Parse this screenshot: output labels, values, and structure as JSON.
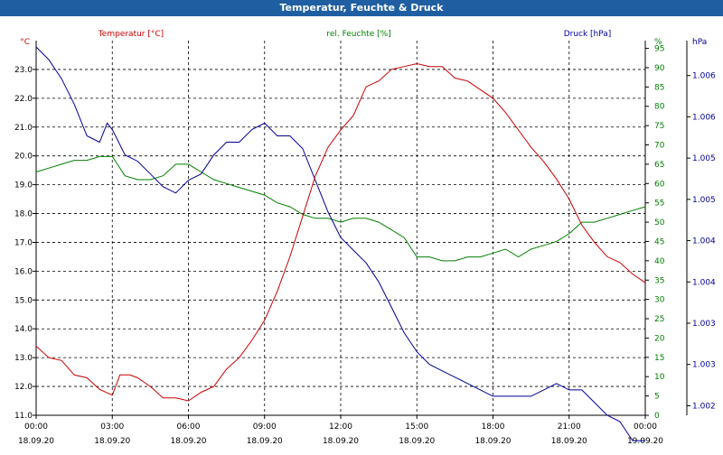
{
  "window": {
    "title": "Temperatur, Feuchte & Druck"
  },
  "chart_data": {
    "type": "line",
    "title": "Temperatur, Feuchte & Druck",
    "x_ticks": [
      {
        "time": "00:00",
        "date": "18.09.20"
      },
      {
        "time": "03:00",
        "date": "18.09.20"
      },
      {
        "time": "06:00",
        "date": "18.09.20"
      },
      {
        "time": "09:00",
        "date": "18.09.20"
      },
      {
        "time": "12:00",
        "date": "18.09.20"
      },
      {
        "time": "15:00",
        "date": "18.09.20"
      },
      {
        "time": "18:00",
        "date": "18.09.20"
      },
      {
        "time": "21:00",
        "date": "18.09.20"
      },
      {
        "time": "00:00",
        "date": "19.09.20"
      }
    ],
    "xlim_hours": [
      0,
      24
    ],
    "grid": true,
    "series": [
      {
        "name": "Temperatur [°C]",
        "axis": "left",
        "unit": "°C",
        "color": "#cc0000",
        "ylim": [
          11.0,
          24.0
        ],
        "ticks": [
          "11.0",
          "12.0",
          "13.0",
          "14.0",
          "15.0",
          "16.0",
          "17.0",
          "18.0",
          "19.0",
          "20.0",
          "21.0",
          "22.0",
          "23.0"
        ],
        "x": [
          0,
          0.5,
          1,
          1.5,
          2,
          2.5,
          3,
          3.3,
          3.7,
          4,
          4.5,
          5,
          5.5,
          6,
          6.5,
          7,
          7.5,
          8,
          8.5,
          9,
          9.5,
          10,
          10.5,
          11,
          11.5,
          12,
          12.5,
          13,
          13.5,
          14,
          14.5,
          15,
          15.5,
          16,
          16.5,
          17,
          17.5,
          18,
          18.5,
          19,
          19.5,
          20,
          20.5,
          21,
          21.5,
          22,
          22.5,
          23,
          23.5,
          24
        ],
        "values": [
          13.4,
          13.0,
          12.9,
          12.4,
          12.3,
          11.9,
          11.7,
          12.4,
          12.4,
          12.3,
          12.0,
          11.6,
          11.6,
          11.5,
          11.8,
          12.0,
          12.6,
          13.0,
          13.6,
          14.3,
          15.3,
          16.5,
          17.9,
          19.3,
          20.3,
          20.9,
          21.4,
          22.4,
          22.6,
          23.0,
          23.1,
          23.2,
          23.1,
          23.1,
          22.7,
          22.6,
          22.3,
          22.0,
          21.5,
          20.9,
          20.3,
          19.8,
          19.2,
          18.5,
          17.6,
          17.0,
          16.5,
          16.3,
          15.9,
          15.6
        ]
      },
      {
        "name": "rel. Feuchte [%]",
        "axis": "right-inner",
        "unit": "%",
        "color": "#008000",
        "ylim": [
          0,
          97
        ],
        "ticks": [
          "0",
          "5",
          "10",
          "15",
          "20",
          "25",
          "30",
          "35",
          "40",
          "45",
          "50",
          "55",
          "60",
          "65",
          "70",
          "75",
          "80",
          "85",
          "90",
          "95"
        ],
        "x": [
          0,
          0.5,
          1,
          1.5,
          2,
          2.5,
          3,
          3.5,
          4,
          4.5,
          5,
          5.5,
          6,
          6.5,
          7,
          7.5,
          8,
          8.5,
          9,
          9.5,
          10,
          10.5,
          11,
          11.5,
          12,
          12.5,
          13,
          13.5,
          14,
          14.5,
          15,
          15.5,
          16,
          16.5,
          17,
          17.5,
          18,
          18.5,
          19,
          19.5,
          20,
          20.5,
          21,
          21.5,
          22,
          22.5,
          23,
          23.5,
          24
        ],
        "values": [
          63,
          64,
          65,
          66,
          66,
          67,
          67,
          62,
          61,
          61,
          62,
          65,
          65,
          63,
          61,
          60,
          59,
          58,
          57,
          55,
          54,
          52,
          51,
          51,
          50,
          51,
          51,
          50,
          48,
          46,
          41,
          41,
          40,
          40,
          41,
          41,
          42,
          43,
          41,
          43,
          44,
          45,
          47,
          50,
          50,
          51,
          52,
          53,
          54
        ]
      },
      {
        "name": "Druck [hPa]",
        "axis": "right",
        "unit": "hPa",
        "color": "#000099",
        "ylim": [
          1001.7,
          1007.6
        ],
        "ticks": [
          "1.002",
          "1.003",
          "1.003",
          "1.004",
          "1.004",
          "1.005",
          "1.005",
          "1.006",
          "1.006",
          "1.007"
        ],
        "x": [
          0,
          0.5,
          1,
          1.5,
          2,
          2.5,
          2.8,
          3,
          3.5,
          4,
          4.5,
          5,
          5.5,
          6,
          6.5,
          7,
          7.5,
          8,
          8.5,
          9,
          9.5,
          10,
          10.5,
          11,
          11.5,
          12,
          12.5,
          13,
          13.5,
          14,
          14.5,
          15,
          15.5,
          16,
          16.5,
          17,
          17.5,
          18,
          18.5,
          19,
          19.5,
          20,
          20.5,
          21,
          21.5,
          22,
          22.5,
          23,
          23.5,
          24
        ],
        "values": [
          1007.5,
          1007.3,
          1007.0,
          1006.6,
          1006.1,
          1006.0,
          1006.3,
          1006.2,
          1005.8,
          1005.7,
          1005.5,
          1005.3,
          1005.2,
          1005.4,
          1005.5,
          1005.8,
          1006.0,
          1006.0,
          1006.2,
          1006.3,
          1006.1,
          1006.1,
          1005.9,
          1005.4,
          1004.9,
          1004.5,
          1004.3,
          1004.1,
          1003.8,
          1003.4,
          1003.0,
          1002.7,
          1002.5,
          1002.4,
          1002.3,
          1002.2,
          1002.1,
          1002.0,
          1002.0,
          1002.0,
          1002.0,
          1002.1,
          1002.2,
          1002.1,
          1002.1,
          1001.9,
          1001.7,
          1001.6,
          1001.3,
          1001.3
        ]
      }
    ]
  }
}
